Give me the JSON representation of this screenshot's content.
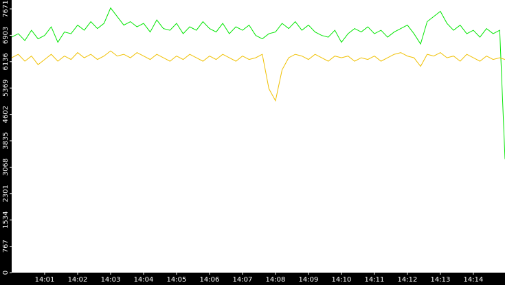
{
  "chart_data": {
    "type": "line",
    "x": [
      0,
      0.2,
      0.4,
      0.6,
      0.8,
      1,
      1.2,
      1.4,
      1.6,
      1.8,
      2,
      2.2,
      2.4,
      2.6,
      2.8,
      3,
      3.2,
      3.4,
      3.6,
      3.8,
      4,
      4.2,
      4.4,
      4.6,
      4.8,
      5,
      5.2,
      5.4,
      5.6,
      5.8,
      6,
      6.2,
      6.4,
      6.6,
      6.8,
      7,
      7.2,
      7.4,
      7.6,
      7.8,
      8,
      8.2,
      8.4,
      8.6,
      8.8,
      9,
      9.2,
      9.4,
      9.6,
      9.8,
      10,
      10.2,
      10.4,
      10.6,
      10.8,
      11,
      11.2,
      11.4,
      11.6,
      11.8,
      12,
      12.2,
      12.4,
      12.6,
      12.8,
      13,
      13.2,
      13.4,
      13.6,
      13.8,
      14,
      14.2,
      14.4,
      14.6,
      14.8,
      14.96
    ],
    "series": [
      {
        "color": "#00e600",
        "values": [
          6850,
          6950,
          6750,
          7050,
          6800,
          6900,
          7150,
          6700,
          7000,
          6950,
          7200,
          7050,
          7300,
          7100,
          7250,
          7700,
          7450,
          7200,
          7300,
          7150,
          7250,
          7000,
          7350,
          7100,
          7050,
          7250,
          6950,
          7150,
          7050,
          7300,
          7100,
          7000,
          7250,
          6950,
          7150,
          7050,
          7200,
          6900,
          6800,
          6950,
          7000,
          7250,
          7100,
          7300,
          7050,
          7200,
          7000,
          6900,
          6850,
          7050,
          6700,
          6950,
          7100,
          7000,
          7150,
          6950,
          7050,
          6850,
          7000,
          7100,
          7200,
          6950,
          6650,
          7300,
          7450,
          7600,
          7250,
          7050,
          7200,
          6950,
          7050,
          6850,
          7100,
          6950,
          7050,
          3300
        ]
      },
      {
        "color": "#f0c000",
        "values": [
          6250,
          6350,
          6150,
          6300,
          6050,
          6200,
          6350,
          6150,
          6300,
          6200,
          6400,
          6250,
          6350,
          6200,
          6300,
          6450,
          6300,
          6350,
          6250,
          6400,
          6300,
          6200,
          6350,
          6250,
          6150,
          6300,
          6200,
          6350,
          6250,
          6150,
          6300,
          6200,
          6350,
          6250,
          6150,
          6300,
          6200,
          6250,
          6350,
          5350,
          5000,
          5900,
          6250,
          6350,
          6300,
          6200,
          6350,
          6250,
          6150,
          6300,
          6250,
          6300,
          6150,
          6250,
          6200,
          6300,
          6150,
          6250,
          6350,
          6400,
          6300,
          6250,
          6000,
          6350,
          6300,
          6400,
          6250,
          6300,
          6150,
          6350,
          6250,
          6150,
          6300,
          6200,
          6250,
          6200
        ]
      }
    ],
    "xlim": [
      0,
      14.96
    ],
    "xticks": [
      {
        "value": 1,
        "label": "14:01"
      },
      {
        "value": 2,
        "label": "14:02"
      },
      {
        "value": 3,
        "label": "14:03"
      },
      {
        "value": 4,
        "label": "14:04"
      },
      {
        "value": 5,
        "label": "14:05"
      },
      {
        "value": 6,
        "label": "14:06"
      },
      {
        "value": 7,
        "label": "14:07"
      },
      {
        "value": 8,
        "label": "14:08"
      },
      {
        "value": 9,
        "label": "14:09"
      },
      {
        "value": 10,
        "label": "14:10"
      },
      {
        "value": 11,
        "label": "14:11"
      },
      {
        "value": 12,
        "label": "14:12"
      },
      {
        "value": 13,
        "label": "14:13"
      },
      {
        "value": 14,
        "label": "14:14"
      }
    ],
    "ylim": [
      0,
      7930
    ],
    "yticks": [
      0,
      767,
      1534,
      2301,
      3068,
      3835,
      4602,
      5369,
      6136,
      6903,
      7671
    ]
  }
}
